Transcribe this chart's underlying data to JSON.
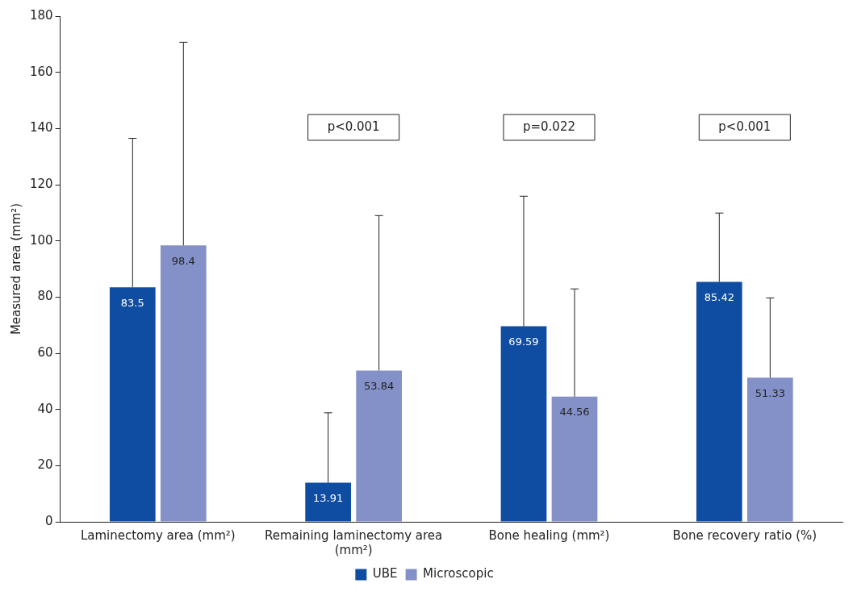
{
  "chart_data": {
    "type": "bar",
    "ylabel": "Measured area (mm²)",
    "categories": [
      "Laminectomy area (mm²)",
      "Remaining laminectomy area (mm²)",
      "Bone healing (mm²)",
      "Bone recovery ratio (%)"
    ],
    "series": [
      {
        "name": "UBE",
        "color": "#0f4da2",
        "values": [
          83.5,
          13.91,
          69.59,
          85.42
        ],
        "errors": [
          [
            83.5,
            136.5
          ],
          [
            13.91,
            38.8
          ],
          [
            69.59,
            115.9
          ],
          [
            85.42,
            109.9
          ]
        ]
      },
      {
        "name": "Microscopic",
        "color": "#8491c8",
        "values": [
          98.4,
          53.84,
          44.56,
          51.33
        ],
        "errors": [
          [
            98.4,
            170.7
          ],
          [
            53.84,
            109
          ],
          [
            44.56,
            82.9
          ],
          [
            51.33,
            79.7
          ]
        ]
      }
    ],
    "ylim": [
      0,
      180
    ],
    "yticks": [
      0,
      20,
      40,
      60,
      80,
      100,
      120,
      140,
      160,
      180
    ],
    "grid": false,
    "legend": "bottom",
    "data_labels": true,
    "annotations": [
      "p<0.001",
      "p=0.022",
      "p<0.001"
    ]
  }
}
